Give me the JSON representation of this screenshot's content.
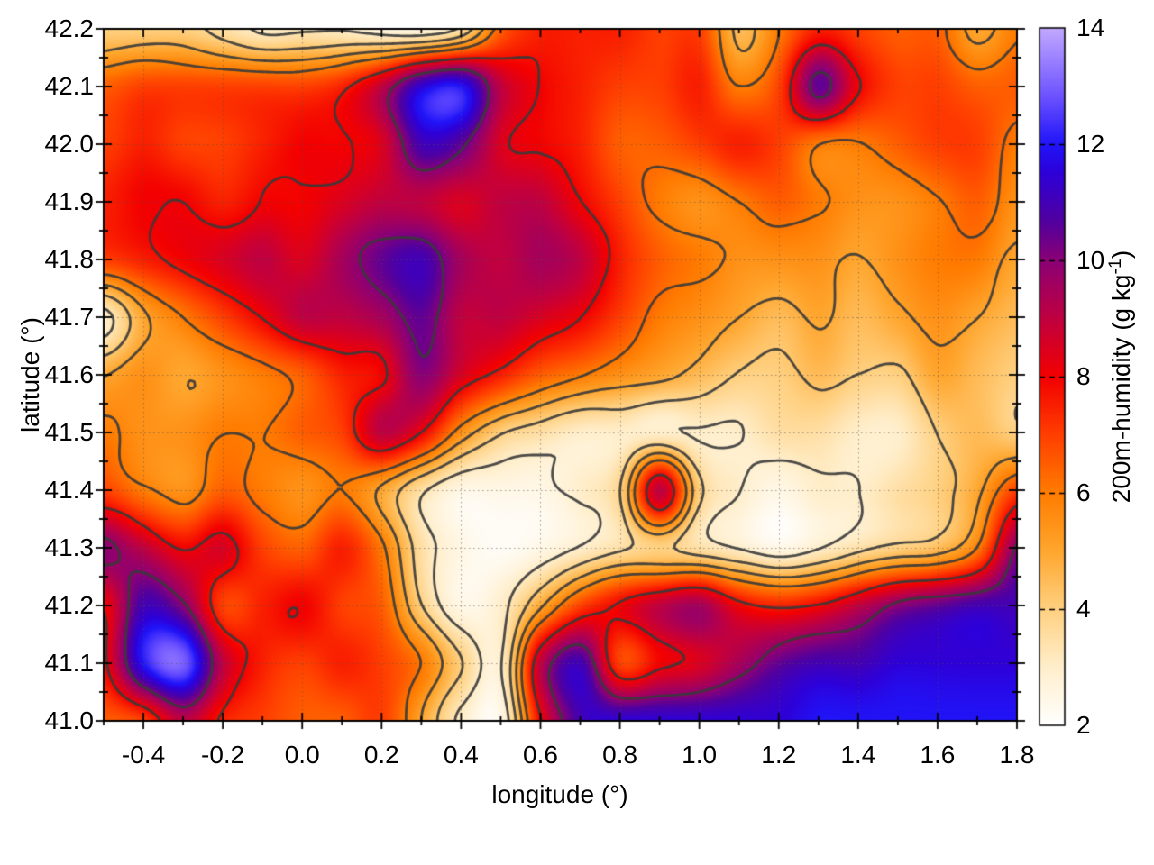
{
  "chart_data": {
    "type": "heatmap",
    "xlabel": "longitude (°)",
    "ylabel": "latitude (°)",
    "x_range": [
      -0.5,
      1.8
    ],
    "y_range": [
      41.0,
      42.2
    ],
    "x_ticks": [
      "-0.4",
      "-0.2",
      "0.0",
      "0.2",
      "0.4",
      "0.6",
      "0.8",
      "1.0",
      "1.2",
      "1.4",
      "1.6",
      "1.8"
    ],
    "x_tick_values": [
      -0.4,
      -0.2,
      0.0,
      0.2,
      0.4,
      0.6,
      0.8,
      1.0,
      1.2,
      1.4,
      1.6,
      1.8
    ],
    "x_minor_step": 0.1,
    "y_ticks": [
      "42.2",
      "42.1",
      "42.0",
      "41.9",
      "41.8",
      "41.7",
      "41.6",
      "41.5",
      "41.4",
      "41.3",
      "41.2",
      "41.1",
      "41.0"
    ],
    "y_tick_values": [
      42.2,
      42.1,
      42.0,
      41.9,
      41.8,
      41.7,
      41.6,
      41.5,
      41.4,
      41.3,
      41.2,
      41.1,
      41.0
    ],
    "y_minor_step": 0.05,
    "grid": {
      "on": true,
      "style": "dotted",
      "x_step": 0.2,
      "y_step": 0.1
    },
    "colorbar": {
      "label_main": "200m-humidity (g kg",
      "label_sup": "-1",
      "label_close": ")",
      "range": [
        2,
        14
      ],
      "ticks": [
        "2",
        "4",
        "6",
        "8",
        "10",
        "12",
        "14"
      ],
      "tick_values": [
        2,
        4,
        6,
        8,
        10,
        12,
        14
      ],
      "palette_stops": [
        [
          2,
          "#ffffff"
        ],
        [
          3,
          "#ffeecb"
        ],
        [
          4,
          "#ffd080"
        ],
        [
          5,
          "#ffa62e"
        ],
        [
          6,
          "#ff7c00"
        ],
        [
          7,
          "#ff3e00"
        ],
        [
          8,
          "#f30000"
        ],
        [
          9,
          "#c00040"
        ],
        [
          10,
          "#8b0075"
        ],
        [
          10.7,
          "#5000a0"
        ],
        [
          11.5,
          "#2e00d8"
        ],
        [
          12,
          "#2014f8"
        ],
        [
          12.8,
          "#6a50ff"
        ],
        [
          14,
          "#c2a8ff"
        ]
      ]
    },
    "contours": {
      "levels": [
        3,
        4,
        5,
        6,
        8,
        10
      ],
      "color": "#3a3a3a",
      "line_width": 2.8,
      "note": "dark terrain-style contour overlay"
    },
    "humidity_grid": {
      "units": "g kg-1",
      "lon_start": -0.5,
      "lon_step": 0.1,
      "lat_start": 42.2,
      "lat_step": -0.1,
      "values": [
        [
          4.0,
          4.0,
          4.0,
          3.5,
          3.0,
          3.2,
          3.0,
          2.6,
          2.6,
          3.5,
          6.5,
          7.5,
          7.5,
          7.5,
          7.0,
          7.0,
          4.5,
          6.0,
          7.5,
          7.0,
          6.5,
          6.5,
          5.0,
          6.0
        ],
        [
          6.5,
          7.0,
          7.0,
          7.0,
          7.0,
          7.0,
          7.5,
          9.0,
          11.5,
          12.0,
          9.0,
          8.0,
          7.5,
          7.0,
          7.0,
          7.5,
          6.0,
          7.0,
          10.5,
          8.0,
          7.0,
          7.0,
          6.5,
          6.5
        ],
        [
          7.0,
          7.5,
          7.0,
          7.0,
          7.5,
          8.0,
          8.0,
          8.5,
          11.0,
          10.5,
          8.5,
          8.0,
          7.5,
          6.5,
          6.5,
          7.0,
          7.5,
          7.0,
          6.0,
          6.0,
          6.5,
          7.0,
          7.0,
          6.0
        ],
        [
          7.5,
          8.0,
          8.0,
          7.5,
          8.0,
          8.0,
          8.5,
          9.0,
          9.0,
          8.5,
          9.0,
          9.0,
          8.0,
          7.0,
          6.0,
          5.5,
          6.0,
          6.5,
          6.0,
          5.5,
          5.5,
          6.0,
          6.5,
          5.5
        ],
        [
          7.0,
          7.5,
          8.0,
          8.5,
          9.0,
          8.5,
          9.5,
          10.5,
          11.0,
          9.5,
          9.0,
          9.5,
          9.0,
          7.5,
          6.5,
          6.0,
          5.5,
          5.5,
          5.5,
          5.0,
          5.5,
          6.0,
          6.0,
          5.0
        ],
        [
          3.0,
          5.0,
          6.0,
          7.0,
          8.0,
          9.0,
          9.0,
          9.5,
          10.5,
          9.0,
          9.0,
          8.5,
          8.0,
          7.0,
          6.0,
          5.5,
          5.0,
          4.5,
          5.0,
          4.5,
          5.0,
          5.5,
          5.0,
          4.5
        ],
        [
          5.0,
          5.5,
          5.0,
          5.5,
          6.0,
          6.5,
          7.5,
          8.0,
          10.0,
          8.5,
          7.5,
          6.5,
          6.0,
          5.5,
          5.0,
          4.5,
          4.0,
          4.0,
          4.5,
          4.0,
          4.0,
          5.0,
          4.5,
          4.0
        ],
        [
          6.0,
          5.5,
          5.5,
          6.0,
          6.0,
          6.5,
          7.0,
          9.0,
          8.0,
          5.5,
          4.0,
          3.5,
          3.0,
          3.0,
          3.0,
          3.0,
          3.0,
          3.5,
          3.5,
          3.0,
          3.0,
          4.0,
          4.5,
          4.0
        ],
        [
          7.0,
          6.0,
          5.5,
          6.5,
          6.0,
          5.5,
          6.0,
          5.0,
          3.5,
          2.5,
          2.5,
          2.5,
          3.0,
          4.0,
          9.0,
          4.0,
          3.0,
          2.5,
          3.0,
          3.0,
          3.5,
          4.0,
          5.0,
          7.0
        ],
        [
          10.0,
          9.0,
          8.0,
          8.5,
          7.0,
          6.5,
          7.5,
          6.0,
          3.5,
          2.5,
          2.2,
          2.5,
          3.0,
          3.5,
          4.0,
          3.5,
          3.0,
          2.5,
          3.0,
          3.5,
          4.0,
          4.5,
          6.0,
          10.0
        ],
        [
          8.0,
          11.0,
          10.0,
          7.0,
          7.5,
          8.0,
          7.0,
          6.5,
          4.0,
          2.5,
          3.0,
          5.0,
          7.0,
          8.0,
          9.0,
          9.5,
          8.0,
          7.5,
          8.0,
          9.0,
          10.0,
          10.5,
          11.0,
          11.0
        ],
        [
          8.0,
          12.0,
          13.0,
          9.0,
          7.5,
          7.0,
          7.5,
          7.0,
          6.0,
          4.0,
          3.0,
          9.0,
          11.0,
          7.0,
          8.0,
          8.5,
          9.5,
          10.5,
          11.0,
          11.0,
          11.5,
          11.5,
          11.5,
          11.5
        ],
        [
          6.5,
          7.0,
          9.0,
          7.5,
          7.0,
          6.5,
          6.5,
          7.0,
          5.0,
          3.0,
          2.5,
          8.0,
          11.0,
          11.5,
          11.5,
          11.5,
          11.5,
          11.5,
          12.0,
          12.0,
          12.0,
          12.0,
          12.0,
          12.0
        ]
      ]
    }
  }
}
